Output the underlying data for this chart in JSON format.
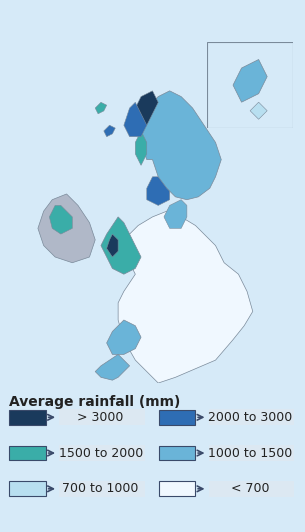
{
  "title": "Average rainfall (mm)",
  "background_color": "#d6eaf8",
  "map_background": "#d6eaf8",
  "legend_background": "#dce8f0",
  "ireland_color": "#b0b8c8",
  "legend_items": [
    {
      "label": "> 3000",
      "color": "#1a3a5c"
    },
    {
      "label": "2000 to 3000",
      "color": "#2e6db4"
    },
    {
      "label": "1500 to 2000",
      "color": "#3aada8"
    },
    {
      "label": "1000 to 1500",
      "color": "#6ab4d8"
    },
    {
      "label": "700 to 1000",
      "color": "#b8dff0"
    },
    {
      "label": "< 700",
      "color": "#f0f8ff"
    }
  ],
  "arrow_color": "#3a4a6a",
  "legend_fontsize": 9,
  "legend_title_fontsize": 10,
  "border_color": "#7a8a9a",
  "inset_border_color": "#7a8a9a"
}
